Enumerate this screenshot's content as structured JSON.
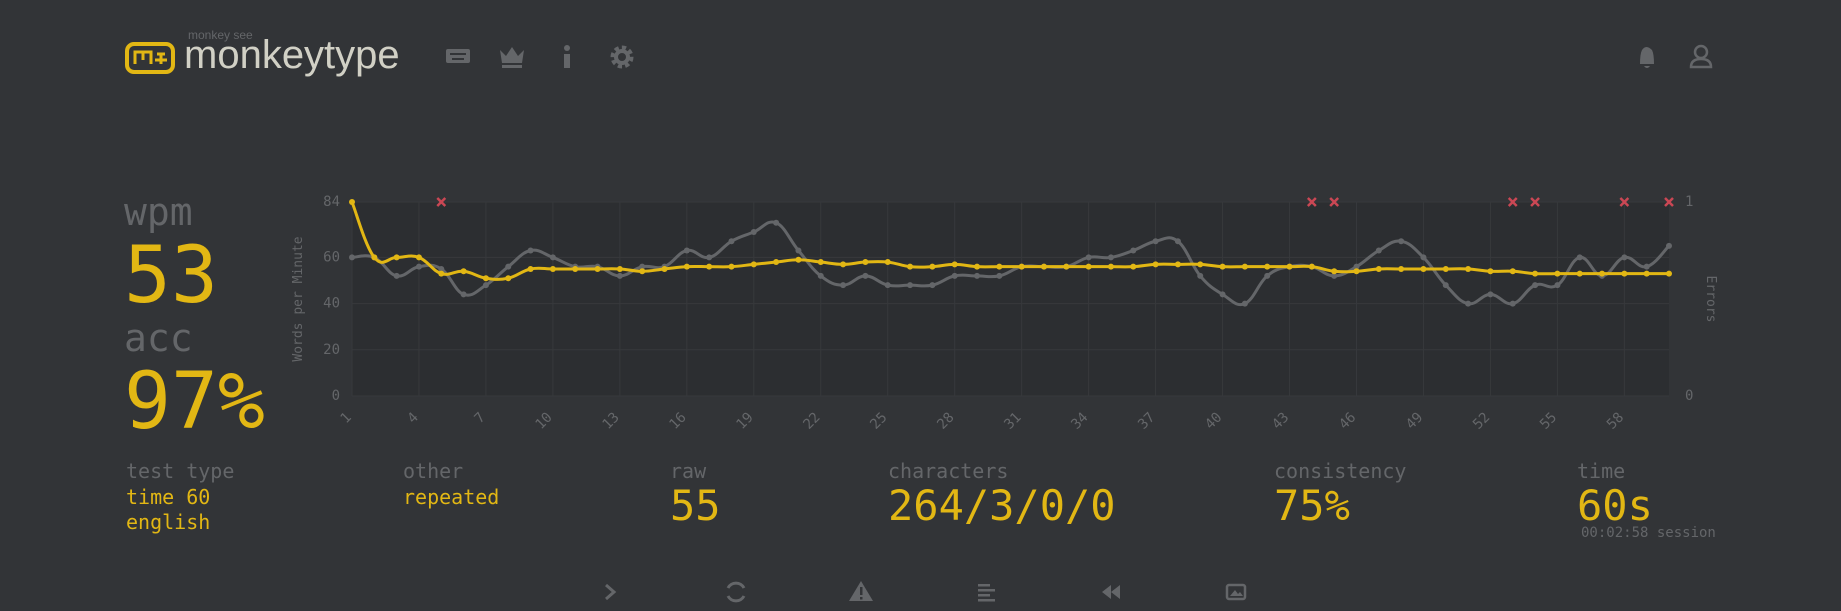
{
  "header": {
    "logo_small": "monkey see",
    "logo": "monkeytype"
  },
  "summary": {
    "wpm_label": "wpm",
    "wpm": "53",
    "acc_label": "acc",
    "acc": "97%"
  },
  "chart_data": {
    "type": "line",
    "ylabel": "Words per Minute",
    "y2label": "Errors",
    "x": [
      1,
      2,
      3,
      4,
      5,
      6,
      7,
      8,
      9,
      10,
      11,
      12,
      13,
      14,
      15,
      16,
      17,
      18,
      19,
      20,
      21,
      22,
      23,
      24,
      25,
      26,
      27,
      28,
      29,
      30,
      31,
      32,
      33,
      34,
      35,
      36,
      37,
      38,
      39,
      40,
      41,
      42,
      43,
      44,
      45,
      46,
      47,
      48,
      49,
      50,
      51,
      52,
      53,
      54,
      55,
      56,
      57,
      58,
      59,
      60
    ],
    "xlim": [
      1,
      60
    ],
    "xticks": [
      1,
      4,
      7,
      10,
      13,
      16,
      19,
      22,
      25,
      28,
      31,
      34,
      37,
      40,
      43,
      46,
      49,
      52,
      55,
      58
    ],
    "ylim": [
      0,
      84
    ],
    "yticks": [
      0,
      20,
      40,
      60,
      84
    ],
    "y2lim": [
      0,
      1
    ],
    "y2ticks": [
      0,
      1
    ],
    "grid": true,
    "series": [
      {
        "color": "#e2b714",
        "values": [
          84,
          60,
          60,
          60,
          53,
          54,
          51,
          51,
          55,
          55,
          55,
          55,
          55,
          54,
          55,
          56,
          56,
          56,
          57,
          58,
          59,
          58,
          57,
          58,
          58,
          56,
          56,
          57,
          56,
          56,
          56,
          56,
          56,
          56,
          56,
          56,
          57,
          57,
          57,
          56,
          56,
          56,
          56,
          56,
          54,
          54,
          55,
          55,
          55,
          55,
          55,
          54,
          54,
          53,
          53,
          53,
          53,
          53,
          53,
          53
        ]
      },
      {
        "color": "#646669",
        "values": [
          60,
          60,
          52,
          56,
          55,
          44,
          48,
          56,
          63,
          60,
          56,
          56,
          52,
          56,
          56,
          63,
          60,
          67,
          71,
          75,
          63,
          52,
          48,
          52,
          48,
          48,
          48,
          52,
          52,
          52,
          56,
          56,
          56,
          60,
          60,
          63,
          67,
          67,
          52,
          44,
          40,
          52,
          56,
          56,
          52,
          56,
          63,
          67,
          60,
          48,
          40,
          44,
          40,
          48,
          48,
          60,
          52,
          60,
          56,
          65
        ]
      },
      {
        "color": "#ca4754",
        "axis": "y2",
        "values": [
          null,
          null,
          null,
          null,
          1,
          null,
          null,
          null,
          null,
          null,
          null,
          null,
          null,
          null,
          null,
          null,
          null,
          null,
          null,
          null,
          null,
          null,
          null,
          null,
          null,
          null,
          null,
          null,
          null,
          null,
          null,
          null,
          null,
          null,
          null,
          null,
          null,
          null,
          null,
          null,
          null,
          null,
          null,
          1,
          1,
          null,
          null,
          null,
          null,
          null,
          null,
          null,
          1,
          1,
          null,
          null,
          null,
          1,
          null,
          1
        ]
      }
    ]
  },
  "stats": [
    {
      "label": "test type",
      "values": [
        "time 60",
        "english"
      ]
    },
    {
      "label": "other",
      "values": [
        "repeated"
      ]
    },
    {
      "label": "raw",
      "values": [
        "55"
      ]
    },
    {
      "label": "characters",
      "values": [
        "264/3/0/0"
      ]
    },
    {
      "label": "consistency",
      "values": [
        "75%"
      ]
    },
    {
      "label": "time",
      "values": [
        "60s",
        "00:02:58 session"
      ]
    }
  ]
}
